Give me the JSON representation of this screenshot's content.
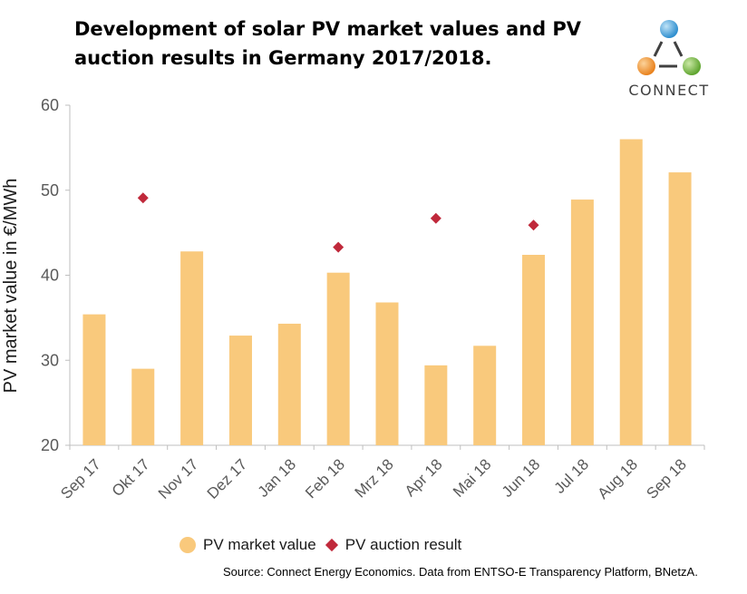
{
  "title_line1": "Development of solar PV market values and PV",
  "title_line2": "auction results in Germany 2017/2018.",
  "logo": {
    "text": "CONNECT",
    "colors": {
      "top": "#4aa3d8",
      "left": "#f29a3a",
      "right": "#7bb843"
    }
  },
  "colors": {
    "bar": "#f9c97c",
    "marker": "#c0293b",
    "axis": "#bfbfbf",
    "tick_text": "#595959"
  },
  "legend": {
    "bar_label": "PV market value",
    "marker_label": "PV auction result"
  },
  "source": "Source: Connect Energy Economics. Data from ENTSO-E Transparency Platform, BNetzA.",
  "chart_data": {
    "type": "bar",
    "ylabel": "PV market value in €/MWh",
    "xlabel": "",
    "ylim": [
      20,
      60
    ],
    "yticks": [
      20,
      30,
      40,
      50,
      60
    ],
    "grid": false,
    "legend_position": "bottom",
    "categories": [
      "Sep 17",
      "Okt 17",
      "Nov 17",
      "Dez 17",
      "Jan 18",
      "Feb 18",
      "Mrz 18",
      "Apr 18",
      "Mai 18",
      "Jun 18",
      "Jul 18",
      "Aug 18",
      "Sep 18"
    ],
    "series": [
      {
        "name": "PV market value",
        "type": "bar",
        "values": [
          35.4,
          29.0,
          42.8,
          32.9,
          34.3,
          40.3,
          36.8,
          29.4,
          31.7,
          42.4,
          48.9,
          56.0,
          52.1
        ]
      },
      {
        "name": "PV auction result",
        "type": "scatter",
        "values": [
          null,
          49.1,
          null,
          null,
          null,
          43.3,
          null,
          46.7,
          null,
          45.9,
          null,
          null,
          null
        ]
      }
    ]
  }
}
